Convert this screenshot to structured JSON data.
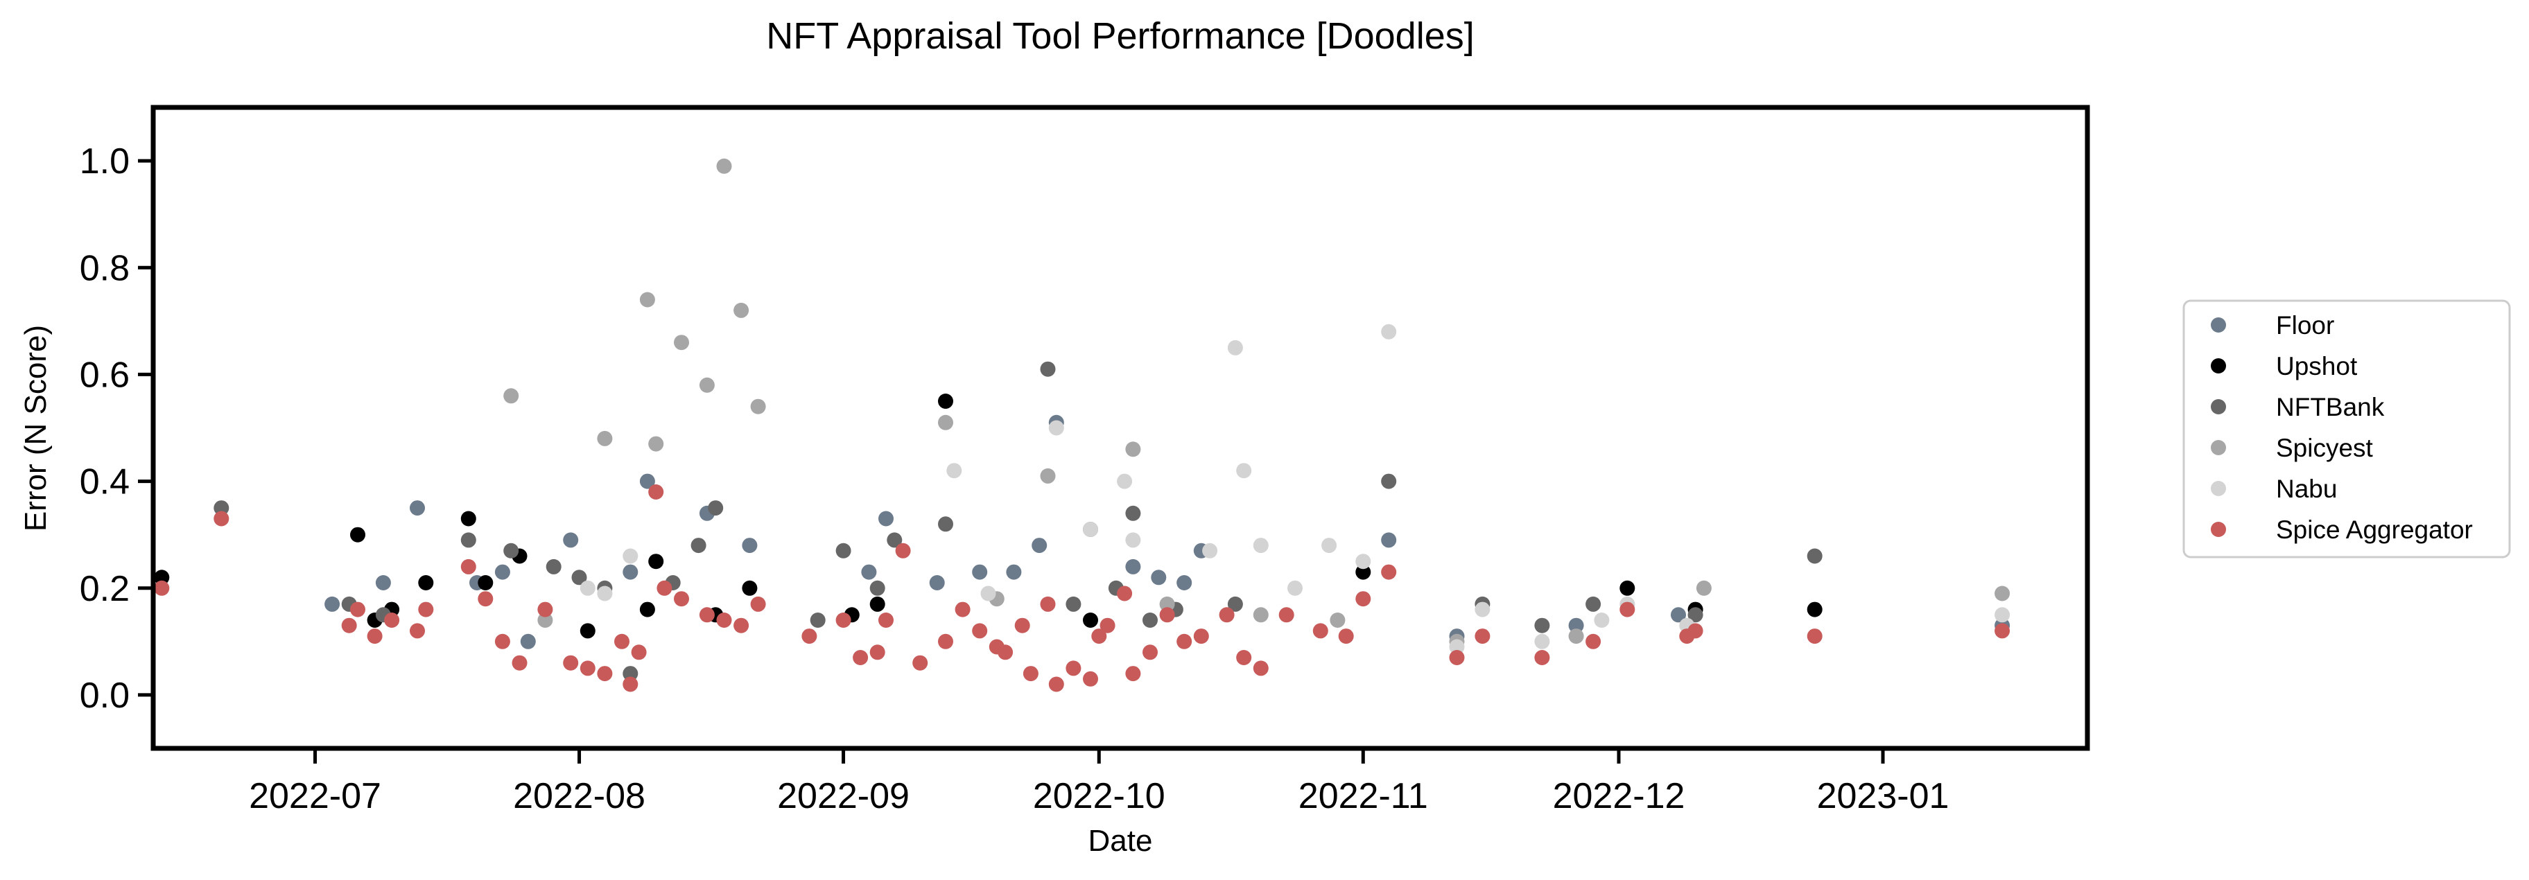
{
  "chart_data": {
    "type": "scatter",
    "title": "NFT Appraisal Tool Performance [Doodles]",
    "xlabel": "Date",
    "ylabel": "Error (N Score)",
    "xlim": [
      "2022-06-12",
      "2023-01-25"
    ],
    "ylim": [
      -0.1,
      1.1
    ],
    "x_ticks": [
      "2022-07",
      "2022-08",
      "2022-09",
      "2022-10",
      "2022-11",
      "2022-12",
      "2023-01"
    ],
    "y_ticks": [
      "0.0",
      "0.2",
      "0.4",
      "0.6",
      "0.8",
      "1.0"
    ],
    "grid": false,
    "legend_position": "right-outside",
    "series": [
      {
        "name": "Floor",
        "color": "#6b7b8c",
        "points": [
          [
            "2022-07-03",
            0.17
          ],
          [
            "2022-07-09",
            0.21
          ],
          [
            "2022-07-13",
            0.35
          ],
          [
            "2022-07-20",
            0.21
          ],
          [
            "2022-07-23",
            0.23
          ],
          [
            "2022-07-26",
            0.1
          ],
          [
            "2022-07-31",
            0.29
          ],
          [
            "2022-08-07",
            0.23
          ],
          [
            "2022-08-09",
            0.4
          ],
          [
            "2022-08-16",
            0.34
          ],
          [
            "2022-08-21",
            0.28
          ],
          [
            "2022-09-04",
            0.23
          ],
          [
            "2022-09-06",
            0.33
          ],
          [
            "2022-09-12",
            0.21
          ],
          [
            "2022-09-17",
            0.23
          ],
          [
            "2022-09-21",
            0.23
          ],
          [
            "2022-09-24",
            0.28
          ],
          [
            "2022-09-26",
            0.51
          ],
          [
            "2022-09-30",
            0.31
          ],
          [
            "2022-10-05",
            0.24
          ],
          [
            "2022-10-08",
            0.22
          ],
          [
            "2022-10-11",
            0.21
          ],
          [
            "2022-10-13",
            0.27
          ],
          [
            "2022-11-04",
            0.29
          ],
          [
            "2022-11-12",
            0.11
          ],
          [
            "2022-11-26",
            0.13
          ],
          [
            "2022-12-08",
            0.15
          ],
          [
            "2023-01-15",
            0.13
          ]
        ]
      },
      {
        "name": "Upshot",
        "color": "#000000",
        "points": [
          [
            "2022-06-13",
            0.22
          ],
          [
            "2022-07-06",
            0.3
          ],
          [
            "2022-07-08",
            0.14
          ],
          [
            "2022-07-10",
            0.16
          ],
          [
            "2022-07-14",
            0.21
          ],
          [
            "2022-07-19",
            0.33
          ],
          [
            "2022-07-21",
            0.21
          ],
          [
            "2022-07-25",
            0.26
          ],
          [
            "2022-08-02",
            0.12
          ],
          [
            "2022-08-09",
            0.16
          ],
          [
            "2022-08-10",
            0.25
          ],
          [
            "2022-08-17",
            0.15
          ],
          [
            "2022-08-21",
            0.2
          ],
          [
            "2022-09-02",
            0.15
          ],
          [
            "2022-09-05",
            0.17
          ],
          [
            "2022-09-13",
            0.55
          ],
          [
            "2022-09-30",
            0.14
          ],
          [
            "2022-11-01",
            0.23
          ],
          [
            "2022-12-02",
            0.2
          ],
          [
            "2022-12-10",
            0.16
          ],
          [
            "2022-12-24",
            0.16
          ]
        ]
      },
      {
        "name": "NFTBank",
        "color": "#666666",
        "points": [
          [
            "2022-06-20",
            0.35
          ],
          [
            "2022-07-05",
            0.17
          ],
          [
            "2022-07-09",
            0.15
          ],
          [
            "2022-07-19",
            0.29
          ],
          [
            "2022-07-24",
            0.27
          ],
          [
            "2022-07-29",
            0.24
          ],
          [
            "2022-08-01",
            0.22
          ],
          [
            "2022-08-04",
            0.2
          ],
          [
            "2022-08-07",
            0.04
          ],
          [
            "2022-08-12",
            0.21
          ],
          [
            "2022-08-15",
            0.28
          ],
          [
            "2022-08-17",
            0.35
          ],
          [
            "2022-08-29",
            0.14
          ],
          [
            "2022-09-01",
            0.27
          ],
          [
            "2022-09-05",
            0.2
          ],
          [
            "2022-09-07",
            0.29
          ],
          [
            "2022-09-13",
            0.32
          ],
          [
            "2022-09-25",
            0.61
          ],
          [
            "2022-09-28",
            0.17
          ],
          [
            "2022-10-03",
            0.2
          ],
          [
            "2022-10-05",
            0.34
          ],
          [
            "2022-10-07",
            0.14
          ],
          [
            "2022-10-10",
            0.16
          ],
          [
            "2022-10-17",
            0.17
          ],
          [
            "2022-11-04",
            0.4
          ],
          [
            "2022-11-15",
            0.17
          ],
          [
            "2022-11-22",
            0.13
          ],
          [
            "2022-11-28",
            0.17
          ],
          [
            "2022-12-10",
            0.15
          ],
          [
            "2022-12-24",
            0.26
          ]
        ]
      },
      {
        "name": "Spicyest",
        "color": "#a6a6a6",
        "points": [
          [
            "2022-07-24",
            0.56
          ],
          [
            "2022-07-28",
            0.14
          ],
          [
            "2022-08-04",
            0.48
          ],
          [
            "2022-08-09",
            0.74
          ],
          [
            "2022-08-10",
            0.47
          ],
          [
            "2022-08-13",
            0.66
          ],
          [
            "2022-08-16",
            0.58
          ],
          [
            "2022-08-18",
            0.99
          ],
          [
            "2022-08-20",
            0.72
          ],
          [
            "2022-08-22",
            0.54
          ],
          [
            "2022-09-13",
            0.51
          ],
          [
            "2022-09-19",
            0.18
          ],
          [
            "2022-09-25",
            0.41
          ],
          [
            "2022-10-05",
            0.46
          ],
          [
            "2022-10-09",
            0.17
          ],
          [
            "2022-10-20",
            0.15
          ],
          [
            "2022-10-29",
            0.14
          ],
          [
            "2022-11-12",
            0.1
          ],
          [
            "2022-11-26",
            0.11
          ],
          [
            "2022-12-11",
            0.2
          ],
          [
            "2023-01-15",
            0.19
          ]
        ]
      },
      {
        "name": "Nabu",
        "color": "#d3d3d3",
        "points": [
          [
            "2022-08-02",
            0.2
          ],
          [
            "2022-08-04",
            0.19
          ],
          [
            "2022-08-07",
            0.26
          ],
          [
            "2022-09-14",
            0.42
          ],
          [
            "2022-09-18",
            0.19
          ],
          [
            "2022-09-26",
            0.5
          ],
          [
            "2022-09-30",
            0.31
          ],
          [
            "2022-10-04",
            0.4
          ],
          [
            "2022-10-05",
            0.29
          ],
          [
            "2022-10-14",
            0.27
          ],
          [
            "2022-10-17",
            0.65
          ],
          [
            "2022-10-18",
            0.42
          ],
          [
            "2022-10-20",
            0.28
          ],
          [
            "2022-10-24",
            0.2
          ],
          [
            "2022-10-28",
            0.28
          ],
          [
            "2022-11-01",
            0.25
          ],
          [
            "2022-11-04",
            0.68
          ],
          [
            "2022-11-12",
            0.09
          ],
          [
            "2022-11-15",
            0.16
          ],
          [
            "2022-11-22",
            0.1
          ],
          [
            "2022-11-29",
            0.14
          ],
          [
            "2022-12-02",
            0.17
          ],
          [
            "2022-12-09",
            0.13
          ],
          [
            "2023-01-15",
            0.15
          ]
        ]
      },
      {
        "name": "Spice Aggregator",
        "color": "#c85a5a",
        "points": [
          [
            "2022-06-13",
            0.2
          ],
          [
            "2022-06-20",
            0.33
          ],
          [
            "2022-07-05",
            0.13
          ],
          [
            "2022-07-06",
            0.16
          ],
          [
            "2022-07-08",
            0.11
          ],
          [
            "2022-07-10",
            0.14
          ],
          [
            "2022-07-13",
            0.12
          ],
          [
            "2022-07-14",
            0.16
          ],
          [
            "2022-07-19",
            0.24
          ],
          [
            "2022-07-21",
            0.18
          ],
          [
            "2022-07-23",
            0.1
          ],
          [
            "2022-07-25",
            0.06
          ],
          [
            "2022-07-28",
            0.16
          ],
          [
            "2022-07-31",
            0.06
          ],
          [
            "2022-08-02",
            0.05
          ],
          [
            "2022-08-04",
            0.04
          ],
          [
            "2022-08-06",
            0.1
          ],
          [
            "2022-08-07",
            0.02
          ],
          [
            "2022-08-08",
            0.08
          ],
          [
            "2022-08-10",
            0.38
          ],
          [
            "2022-08-11",
            0.2
          ],
          [
            "2022-08-13",
            0.18
          ],
          [
            "2022-08-16",
            0.15
          ],
          [
            "2022-08-18",
            0.14
          ],
          [
            "2022-08-20",
            0.13
          ],
          [
            "2022-08-22",
            0.17
          ],
          [
            "2022-08-28",
            0.11
          ],
          [
            "2022-09-01",
            0.14
          ],
          [
            "2022-09-03",
            0.07
          ],
          [
            "2022-09-05",
            0.08
          ],
          [
            "2022-09-06",
            0.14
          ],
          [
            "2022-09-08",
            0.27
          ],
          [
            "2022-09-10",
            0.06
          ],
          [
            "2022-09-13",
            0.1
          ],
          [
            "2022-09-15",
            0.16
          ],
          [
            "2022-09-17",
            0.12
          ],
          [
            "2022-09-19",
            0.09
          ],
          [
            "2022-09-20",
            0.08
          ],
          [
            "2022-09-22",
            0.13
          ],
          [
            "2022-09-23",
            0.04
          ],
          [
            "2022-09-25",
            0.17
          ],
          [
            "2022-09-26",
            0.02
          ],
          [
            "2022-09-28",
            0.05
          ],
          [
            "2022-09-30",
            0.03
          ],
          [
            "2022-10-01",
            0.11
          ],
          [
            "2022-10-02",
            0.13
          ],
          [
            "2022-10-04",
            0.19
          ],
          [
            "2022-10-05",
            0.04
          ],
          [
            "2022-10-07",
            0.08
          ],
          [
            "2022-10-09",
            0.15
          ],
          [
            "2022-10-11",
            0.1
          ],
          [
            "2022-10-13",
            0.11
          ],
          [
            "2022-10-16",
            0.15
          ],
          [
            "2022-10-18",
            0.07
          ],
          [
            "2022-10-20",
            0.05
          ],
          [
            "2022-10-23",
            0.15
          ],
          [
            "2022-10-27",
            0.12
          ],
          [
            "2022-10-30",
            0.11
          ],
          [
            "2022-11-01",
            0.18
          ],
          [
            "2022-11-04",
            0.23
          ],
          [
            "2022-11-12",
            0.07
          ],
          [
            "2022-11-15",
            0.11
          ],
          [
            "2022-11-22",
            0.07
          ],
          [
            "2022-11-28",
            0.1
          ],
          [
            "2022-12-02",
            0.16
          ],
          [
            "2022-12-09",
            0.11
          ],
          [
            "2022-12-10",
            0.12
          ],
          [
            "2022-12-24",
            0.11
          ],
          [
            "2023-01-15",
            0.12
          ]
        ]
      }
    ]
  }
}
